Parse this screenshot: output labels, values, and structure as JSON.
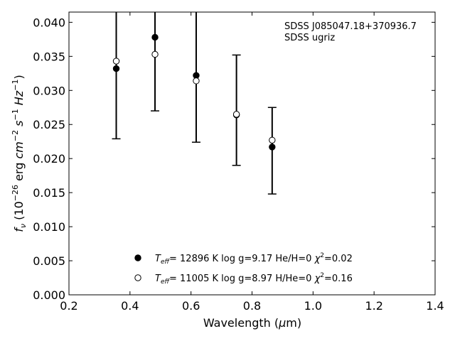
{
  "chart_data": {
    "type": "scatter",
    "xlabel": "Wavelength (μm)",
    "ylabel": "f_ν (10^-26 erg cm^-2 s^-1 Hz^-1)",
    "xlim": [
      0.2,
      1.4
    ],
    "ylim": [
      0.0,
      0.0415
    ],
    "x_ticks": [
      "0.2",
      "0.4",
      "0.6",
      "0.8",
      "1.0",
      "1.2",
      "1.4"
    ],
    "y_ticks": [
      "0.000",
      "0.005",
      "0.010",
      "0.015",
      "0.020",
      "0.025",
      "0.030",
      "0.035",
      "0.040"
    ],
    "annotation": {
      "line1": "SDSS J085047.18+370936.7",
      "line2": "SDSS ugriz",
      "placement": "top-right"
    },
    "observed": {
      "marker": "errorbar",
      "points": [
        {
          "x": 0.355,
          "y": 0.0332,
          "yerr_low": 0.0103,
          "yerr_high": 0.0103
        },
        {
          "x": 0.482,
          "y": 0.0378,
          "yerr_low": 0.0108,
          "yerr_high": 0.0108
        },
        {
          "x": 0.617,
          "y": 0.0322,
          "yerr_low": 0.0098,
          "yerr_high": 0.0098
        },
        {
          "x": 0.749,
          "y": 0.0264,
          "yerr_low": 0.0074,
          "yerr_high": 0.0088
        },
        {
          "x": 0.866,
          "y": 0.0217,
          "yerr_low": 0.0069,
          "yerr_high": 0.0058
        }
      ]
    },
    "series": [
      {
        "name": "T_eff= 12896 K  log g=9.17  He/H=0  χ²=0.02",
        "marker": "filled-circle",
        "color": "#000000",
        "x": [
          0.355,
          0.482,
          0.617,
          0.749,
          0.866
        ],
        "y": [
          0.0332,
          0.0378,
          0.0322,
          0.0264,
          0.0217
        ]
      },
      {
        "name": "T_eff= 11005 K  log g=8.97  H/He=0  χ²=0.16",
        "marker": "open-circle",
        "color": "#000000",
        "x": [
          0.355,
          0.482,
          0.617,
          0.749,
          0.866
        ],
        "y": [
          0.0343,
          0.0353,
          0.0314,
          0.0265,
          0.0227
        ]
      }
    ],
    "legend": {
      "placement": "bottom-center",
      "entries": [
        {
          "teff": "= 12896 K  log g=9.17  He/H=0  ",
          "chi": "=0.02"
        },
        {
          "teff": "= 11005 K  log g=8.97  H/He=0  ",
          "chi": "=0.16"
        }
      ]
    },
    "grid": false
  }
}
